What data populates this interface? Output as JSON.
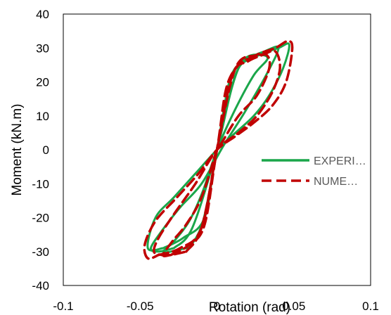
{
  "chart_data": {
    "type": "line",
    "title": "",
    "xlabel": "Rotation (rad)",
    "ylabel": "Moment (kN.m)",
    "xlim": [
      -0.1,
      0.1
    ],
    "ylim": [
      -40,
      40
    ],
    "x_ticks": [
      "-0.1",
      "-0.05",
      "0",
      "0.05",
      "0.1"
    ],
    "y_ticks": [
      "40",
      "30",
      "20",
      "10",
      "0",
      "-10",
      "-20",
      "-30",
      "-40"
    ],
    "grid": false,
    "legend": {
      "position": "right",
      "entries": [
        "EXPERI…",
        "NUME…"
      ]
    },
    "series": [
      {
        "name": "EXPERI…",
        "color": "#1aa64a",
        "style": "solid",
        "loops": [
          {
            "x": [
              -0.018,
              -0.009,
              0.0,
              0.008,
              0.016,
              0.024,
              0.033,
              0.024,
              0.012,
              0.0,
              -0.009,
              -0.018,
              -0.028,
              -0.035,
              -0.03,
              -0.02,
              -0.018
            ],
            "y": [
              -29,
              -21,
              0,
              20,
              26,
              28,
              27,
              22,
              12,
              0,
              -12,
              -21,
              -27,
              -30,
              -30,
              -29,
              -29
            ]
          },
          {
            "x": [
              -0.028,
              -0.016,
              0.0,
              0.012,
              0.022,
              0.031,
              0.04,
              0.032,
              0.018,
              0.004,
              -0.01,
              -0.024,
              -0.036,
              -0.043,
              -0.038,
              -0.028
            ],
            "y": [
              -29,
              -23,
              0,
              22,
              27,
              29,
              30,
              22,
              11,
              1,
              -10,
              -17,
              -24,
              -29,
              -30,
              -29
            ]
          },
          {
            "x": [
              -0.035,
              -0.022,
              -0.008,
              0.0,
              0.014,
              0.028,
              0.04,
              0.047,
              0.043,
              0.034,
              0.024,
              0.012,
              0.0,
              -0.014,
              -0.028,
              -0.04,
              -0.045,
              -0.035
            ],
            "y": [
              -29,
              -26,
              -20,
              0,
              24,
              28,
              30,
              31,
              24,
              16,
              10,
              5,
              0,
              -7,
              -14,
              -20,
              -29,
              -29
            ]
          }
        ]
      },
      {
        "name": "NUME…",
        "color": "#c00000",
        "style": "dashed",
        "loops": [
          {
            "x": [
              -0.02,
              -0.01,
              0.0,
              0.006,
              0.014,
              0.022,
              0.032,
              0.034,
              0.026,
              0.014,
              0.003,
              0.0,
              -0.01,
              -0.02,
              -0.029,
              -0.035,
              -0.03,
              -0.02
            ],
            "y": [
              -30,
              -23,
              0,
              18,
              25,
              27,
              28,
              24,
              16,
              10,
              2,
              0,
              -14,
              -22,
              -27,
              -31,
              -31,
              -30
            ]
          },
          {
            "x": [
              -0.03,
              -0.018,
              -0.008,
              0.0,
              0.01,
              0.02,
              0.03,
              0.038,
              0.041,
              0.036,
              0.026,
              0.014,
              0.0,
              -0.014,
              -0.028,
              -0.038,
              -0.041,
              -0.036,
              -0.03
            ],
            "y": [
              -31,
              -28,
              -22,
              0,
              22,
              26,
              28,
              29,
              24,
              17,
              10,
              5,
              0,
              -10,
              -19,
              -26,
              -30,
              -31,
              -31
            ]
          },
          {
            "x": [
              -0.038,
              -0.024,
              -0.01,
              0.0,
              0.012,
              0.026,
              0.038,
              0.046,
              0.049,
              0.045,
              0.036,
              0.024,
              0.012,
              0.0,
              -0.012,
              -0.026,
              -0.04,
              -0.047,
              -0.045,
              -0.038
            ],
            "y": [
              -31,
              -29,
              -23,
              0,
              24,
              28,
              30,
              32,
              30,
              20,
              13,
              8,
              4,
              0,
              -7,
              -14,
              -21,
              -28,
              -32,
              -31
            ]
          }
        ]
      }
    ]
  }
}
